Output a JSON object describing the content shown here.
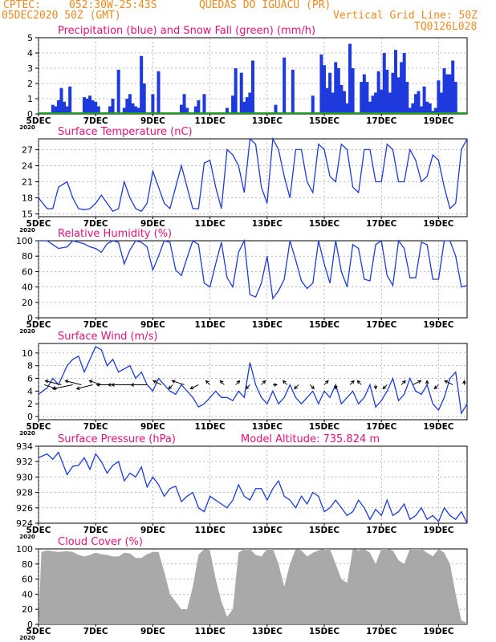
{
  "header": {
    "source": "CPTEC:",
    "coords": "052:30W-25:43S",
    "location": "QUEDAS DO IGUACU (PR)",
    "date": "05DEC2020 50Z (GMT)",
    "grid_note": "Vertical Grid Line: 50Z",
    "model_id": "TQ0126L028",
    "year_stub": "2020"
  },
  "colors": {
    "accent": "#ee8a1e",
    "title": "#e8107a",
    "series": "#1e3adc",
    "snow": "#1ea01e",
    "cloud": "#a9a9a9",
    "grid": "#000000"
  },
  "chart_data": [
    {
      "id": "precip",
      "type": "bar",
      "title": "Precipitation (blue) and Snow Fall (green) (mm/h)",
      "xrange": [
        0,
        15
      ],
      "ylim": [
        0,
        5
      ],
      "yticks": [
        0,
        1,
        2,
        3,
        4,
        5
      ],
      "xticks": [
        "5DEC",
        "7DEC",
        "9DEC",
        "11DEC",
        "13DEC",
        "15DEC",
        "17DEC",
        "19DEC"
      ],
      "series": [
        {
          "name": "Precipitation",
          "x": [
            0.5,
            0.6,
            0.7,
            0.8,
            0.9,
            1.0,
            1.1,
            1.6,
            1.7,
            1.8,
            1.9,
            2.0,
            2.1,
            2.5,
            2.6,
            2.8,
            3.0,
            3.1,
            3.2,
            3.3,
            3.4,
            3.5,
            3.6,
            3.7,
            4.0,
            4.2,
            5.0,
            5.1,
            5.2,
            5.5,
            5.6,
            5.8,
            6.6,
            6.8,
            6.9,
            7.1,
            7.2,
            7.3,
            7.4,
            7.5,
            8.3,
            8.6,
            8.9,
            9.6,
            9.9,
            10.0,
            10.1,
            10.2,
            10.3,
            10.4,
            10.5,
            10.6,
            10.7,
            10.8,
            10.9,
            11.0,
            11.3,
            11.4,
            11.5,
            11.6,
            11.7,
            11.8,
            11.9,
            12.0,
            12.1,
            12.2,
            12.3,
            12.4,
            12.5,
            12.6,
            12.7,
            12.8,
            12.9,
            13.0,
            13.1,
            13.2,
            13.3,
            13.4,
            13.5,
            13.6,
            13.7,
            13.8,
            13.9,
            14.0,
            14.1,
            14.2,
            14.3,
            14.4,
            14.5,
            14.6
          ],
          "values": [
            0.6,
            0.5,
            0.9,
            1.7,
            0.8,
            0.5,
            1.8,
            1.1,
            1.0,
            1.2,
            0.9,
            0.8,
            0.5,
            0.5,
            1.0,
            2.9,
            0.4,
            1.0,
            1.3,
            0.7,
            0.5,
            0.4,
            3.8,
            2.0,
            1.3,
            2.8,
            0.6,
            1.3,
            0.4,
            0.5,
            0.9,
            1.3,
            0.4,
            1.2,
            3.0,
            2.7,
            0.8,
            1.1,
            1.4,
            3.5,
            0.6,
            3.7,
            2.9,
            1.2,
            3.9,
            3.2,
            1.7,
            2.7,
            1.4,
            3.4,
            3.0,
            1.9,
            1.5,
            0.7,
            4.6,
            3.0,
            2.1,
            2.6,
            2.1,
            0.8,
            1.2,
            1.4,
            2.8,
            1.6,
            4.0,
            2.9,
            1.4,
            2.7,
            4.2,
            2.4,
            3.4,
            4.0,
            2.1,
            0.4,
            0.7,
            1.3,
            1.5,
            0.5,
            1.8,
            0.8,
            0.7,
            0.2,
            0.4,
            2.2,
            1.4,
            3.0,
            2.6,
            2.6,
            3.5,
            2.1
          ]
        },
        {
          "name": "Snow Fall",
          "values": [
            0
          ]
        }
      ]
    },
    {
      "id": "temp",
      "type": "line",
      "title": "Surface Temperature (nC)",
      "xrange": [
        0,
        15
      ],
      "ylim": [
        14.5,
        29
      ],
      "yticks": [
        15,
        18,
        21,
        24,
        27
      ],
      "xticks": [
        "5DEC",
        "7DEC",
        "9DEC",
        "11DEC",
        "13DEC",
        "15DEC",
        "17DEC",
        "19DEC"
      ],
      "x": [
        0.0,
        0.3,
        0.5,
        0.7,
        1.0,
        1.2,
        1.4,
        1.6,
        1.8,
        2.0,
        2.2,
        2.4,
        2.6,
        2.8,
        3.0,
        3.2,
        3.4,
        3.6,
        3.8,
        4.0,
        4.2,
        4.4,
        4.6,
        4.8,
        5.0,
        5.2,
        5.4,
        5.6,
        5.8,
        6.0,
        6.2,
        6.4,
        6.6,
        6.8,
        7.0,
        7.2,
        7.4,
        7.6,
        7.8,
        8.0,
        8.2,
        8.4,
        8.6,
        8.8,
        9.0,
        9.2,
        9.4,
        9.6,
        9.8,
        10.0,
        10.2,
        10.4,
        10.6,
        10.8,
        11.0,
        11.2,
        11.4,
        11.6,
        11.8,
        12.0,
        12.2,
        12.4,
        12.6,
        12.8,
        13.0,
        13.2,
        13.4,
        13.6,
        13.8,
        14.0,
        14.2,
        14.4,
        14.6,
        14.8,
        15.0
      ],
      "values": [
        18,
        16,
        16,
        20,
        21,
        18,
        16,
        15.8,
        16,
        17,
        18.5,
        17,
        15.5,
        16,
        21,
        18,
        16,
        15.5,
        17,
        23,
        20,
        17,
        16,
        20,
        24,
        20,
        16,
        16,
        24.5,
        25,
        20,
        16,
        27,
        26,
        24,
        19,
        29,
        28,
        20,
        17,
        29,
        27,
        22,
        18,
        27,
        27,
        21,
        19,
        28,
        27,
        22,
        21,
        28,
        27,
        20,
        19,
        27,
        27,
        21,
        21,
        28,
        27,
        21,
        21,
        27,
        25,
        21,
        22,
        26,
        25,
        20,
        16,
        17,
        27,
        29
      ]
    },
    {
      "id": "rh",
      "type": "line",
      "title": "Relative Humidity (%)",
      "xrange": [
        0,
        15
      ],
      "ylim": [
        0,
        100
      ],
      "yticks": [
        0,
        20,
        40,
        60,
        80,
        100
      ],
      "xticks": [
        "5DEC",
        "7DEC",
        "9DEC",
        "11DEC",
        "13DEC",
        "15DEC",
        "17DEC",
        "19DEC"
      ],
      "x": [
        0.0,
        0.3,
        0.5,
        0.7,
        1.0,
        1.2,
        1.4,
        1.6,
        1.8,
        2.0,
        2.2,
        2.4,
        2.6,
        2.8,
        3.0,
        3.2,
        3.4,
        3.6,
        3.8,
        4.0,
        4.2,
        4.4,
        4.6,
        4.8,
        5.0,
        5.2,
        5.4,
        5.6,
        5.8,
        6.0,
        6.2,
        6.4,
        6.6,
        6.8,
        7.0,
        7.2,
        7.4,
        7.6,
        7.8,
        8.0,
        8.2,
        8.4,
        8.6,
        8.8,
        9.0,
        9.2,
        9.4,
        9.6,
        9.8,
        10.0,
        10.2,
        10.4,
        10.6,
        10.8,
        11.0,
        11.2,
        11.4,
        11.6,
        11.8,
        12.0,
        12.2,
        12.4,
        12.6,
        12.8,
        13.0,
        13.2,
        13.4,
        13.6,
        13.8,
        14.0,
        14.2,
        14.4,
        14.6,
        14.8,
        15.0
      ],
      "values": [
        100,
        100,
        95,
        90,
        92,
        100,
        98,
        96,
        92,
        90,
        85,
        96,
        100,
        98,
        70,
        88,
        100,
        98,
        92,
        62,
        80,
        100,
        98,
        62,
        55,
        78,
        100,
        95,
        45,
        40,
        70,
        98,
        52,
        40,
        85,
        100,
        30,
        27,
        45,
        80,
        25,
        35,
        50,
        100,
        75,
        48,
        38,
        45,
        100,
        70,
        45,
        100,
        60,
        40,
        95,
        90,
        50,
        48,
        95,
        100,
        55,
        42,
        100,
        90,
        52,
        52,
        98,
        95,
        50,
        50,
        100,
        100,
        80,
        40,
        42
      ]
    },
    {
      "id": "wind",
      "type": "line",
      "title": "Surface Wind (m/s)",
      "xrange": [
        0,
        15
      ],
      "ylim": [
        -0.5,
        11.5
      ],
      "yticks": [
        0,
        2,
        4,
        6,
        8,
        10
      ],
      "xticks": [
        "5DEC",
        "7DEC",
        "9DEC",
        "11DEC",
        "13DEC",
        "15DEC",
        "17DEC",
        "19DEC"
      ],
      "x": [
        0.0,
        0.3,
        0.5,
        0.7,
        1.0,
        1.2,
        1.4,
        1.6,
        1.8,
        2.0,
        2.2,
        2.4,
        2.6,
        2.8,
        3.0,
        3.2,
        3.4,
        3.6,
        3.8,
        4.0,
        4.2,
        4.4,
        4.6,
        4.8,
        5.0,
        5.2,
        5.4,
        5.6,
        5.8,
        6.0,
        6.2,
        6.4,
        6.6,
        6.8,
        7.0,
        7.2,
        7.4,
        7.6,
        7.8,
        8.0,
        8.2,
        8.4,
        8.6,
        8.8,
        9.0,
        9.2,
        9.4,
        9.6,
        9.8,
        10.0,
        10.2,
        10.4,
        10.6,
        10.8,
        11.0,
        11.2,
        11.4,
        11.6,
        11.8,
        12.0,
        12.2,
        12.4,
        12.6,
        12.8,
        13.0,
        13.2,
        13.4,
        13.6,
        13.8,
        14.0,
        14.2,
        14.4,
        14.6,
        14.8,
        15.0
      ],
      "values": [
        3.5,
        4.5,
        6,
        5,
        8,
        9,
        9.5,
        7,
        9,
        11,
        10.5,
        8,
        9,
        7,
        7.5,
        8,
        6,
        7,
        5,
        4,
        6,
        5,
        4,
        3.5,
        5,
        4,
        3,
        1.5,
        2,
        3,
        4,
        3,
        3,
        2.5,
        4,
        3,
        8.5,
        5,
        3,
        2,
        4,
        2,
        3,
        5,
        3,
        2,
        3,
        4,
        2,
        4,
        3,
        5,
        2,
        3,
        4,
        2,
        3,
        5,
        1.5,
        2.5,
        4,
        6,
        2.5,
        3.5,
        6,
        4,
        3.5,
        5,
        2,
        1,
        3,
        6,
        7,
        0.5,
        2
      ],
      "vectors": {
        "x": [
          0.2,
          0.8,
          1.2,
          1.5,
          1.9,
          2.2,
          2.6,
          3.0,
          3.4,
          3.8,
          4.3,
          4.7,
          5.1,
          5.6,
          6.0,
          6.5,
          6.9,
          7.4,
          7.8,
          8.2,
          8.7,
          9.1,
          9.5,
          10.0,
          10.4,
          10.9,
          11.3,
          11.8,
          12.2,
          12.7,
          13.1,
          13.6,
          14.0,
          14.5,
          14.9
        ],
        "u": [
          3,
          -4,
          -5,
          -4,
          -4,
          -3,
          -4,
          -4,
          -6,
          -4,
          -2,
          -1,
          -3,
          -2,
          -1,
          -1,
          1,
          -1,
          1,
          1,
          -1,
          -1,
          1,
          1,
          0,
          1,
          -1,
          0,
          -1,
          1,
          2,
          0,
          -1,
          -2,
          0
        ],
        "v": [
          -1,
          1,
          -1,
          1,
          -1,
          1,
          0,
          0,
          0,
          0,
          1,
          -1,
          1,
          -1,
          1,
          1,
          1,
          -1,
          1,
          0,
          1,
          -1,
          -1,
          1,
          -1,
          1,
          1,
          -1,
          -1,
          1,
          1,
          1,
          -1,
          1,
          1
        ]
      }
    },
    {
      "id": "pres",
      "type": "line",
      "title": "Surface Pressure (hPa)",
      "subtitle": "Model Altitude: 735.824 m",
      "xrange": [
        0,
        15
      ],
      "ylim": [
        924,
        934
      ],
      "yticks": [
        924,
        926,
        928,
        930,
        932,
        934
      ],
      "xticks": [
        "5DEC",
        "7DEC",
        "9DEC",
        "11DEC",
        "13DEC",
        "15DEC",
        "17DEC",
        "19DEC"
      ],
      "x": [
        0.0,
        0.3,
        0.5,
        0.7,
        1.0,
        1.2,
        1.4,
        1.6,
        1.8,
        2.0,
        2.2,
        2.4,
        2.6,
        2.8,
        3.0,
        3.2,
        3.4,
        3.6,
        3.8,
        4.0,
        4.2,
        4.4,
        4.6,
        4.8,
        5.0,
        5.2,
        5.4,
        5.6,
        5.8,
        6.0,
        6.2,
        6.4,
        6.6,
        6.8,
        7.0,
        7.2,
        7.4,
        7.6,
        7.8,
        8.0,
        8.2,
        8.4,
        8.6,
        8.8,
        9.0,
        9.2,
        9.4,
        9.6,
        9.8,
        10.0,
        10.2,
        10.4,
        10.6,
        10.8,
        11.0,
        11.2,
        11.4,
        11.6,
        11.8,
        12.0,
        12.2,
        12.4,
        12.6,
        12.8,
        13.0,
        13.2,
        13.4,
        13.6,
        13.8,
        14.0,
        14.2,
        14.4,
        14.6,
        14.8,
        15.0
      ],
      "values": [
        932.5,
        933,
        932.3,
        933.2,
        930.3,
        931.4,
        931.5,
        932.5,
        931,
        933,
        932,
        930.5,
        931.5,
        932,
        929.5,
        930.5,
        930,
        931.3,
        928.7,
        930,
        929,
        927.5,
        928.5,
        928.8,
        926.8,
        927.5,
        928,
        926,
        925.5,
        927.5,
        927,
        926.5,
        926,
        927,
        929,
        927.5,
        927,
        928.5,
        928.5,
        927,
        928.5,
        929.5,
        927.5,
        927,
        926,
        927.5,
        926.5,
        928,
        927.5,
        925.5,
        926,
        927,
        926,
        925,
        925.5,
        927,
        926,
        924.5,
        925.8,
        925,
        927,
        925,
        925.5,
        926.5,
        924.5,
        925,
        926,
        924.5,
        925,
        924.2,
        926,
        925,
        924.5,
        925.5,
        924
      ]
    },
    {
      "id": "cloud",
      "type": "area",
      "title": "Cloud Cover (%)",
      "xrange": [
        0,
        15
      ],
      "ylim": [
        0,
        100
      ],
      "yticks": [
        0,
        20,
        40,
        60,
        80,
        100
      ],
      "xticks": [
        "5DEC",
        "7DEC",
        "9DEC",
        "11DEC",
        "13DEC",
        "15DEC",
        "17DEC",
        "19DEC"
      ],
      "x": [
        0.0,
        0.1,
        0.2,
        0.3,
        0.5,
        0.7,
        1.0,
        1.2,
        1.4,
        1.6,
        1.8,
        2.0,
        2.2,
        2.4,
        2.6,
        2.8,
        3.0,
        3.2,
        3.4,
        3.6,
        3.8,
        4.0,
        4.2,
        4.4,
        4.6,
        4.8,
        5.0,
        5.2,
        5.4,
        5.6,
        5.8,
        6.0,
        6.2,
        6.4,
        6.6,
        6.8,
        7.0,
        7.2,
        7.4,
        7.6,
        7.8,
        8.0,
        8.2,
        8.4,
        8.6,
        8.8,
        9.0,
        9.2,
        9.4,
        9.6,
        9.8,
        10.0,
        10.2,
        10.4,
        10.6,
        10.8,
        11.0,
        11.2,
        11.4,
        11.6,
        11.8,
        12.0,
        12.2,
        12.4,
        12.6,
        12.8,
        13.0,
        13.2,
        13.4,
        13.6,
        13.8,
        14.0,
        14.2,
        14.4,
        14.6,
        14.8,
        15.0
      ],
      "values": [
        0,
        96,
        97,
        98,
        97,
        96,
        97,
        96,
        92,
        90,
        92,
        95,
        93,
        92,
        90,
        90,
        95,
        94,
        88,
        88,
        93,
        96,
        96,
        70,
        40,
        30,
        20,
        20,
        50,
        92,
        100,
        98,
        60,
        30,
        10,
        20,
        95,
        100,
        100,
        92,
        90,
        100,
        100,
        80,
        50,
        80,
        100,
        98,
        90,
        95,
        98,
        100,
        100,
        80,
        60,
        55,
        100,
        98,
        100,
        95,
        80,
        100,
        100,
        98,
        85,
        80,
        100,
        100,
        100,
        95,
        90,
        100,
        95,
        80,
        40,
        5,
        2
      ]
    }
  ]
}
